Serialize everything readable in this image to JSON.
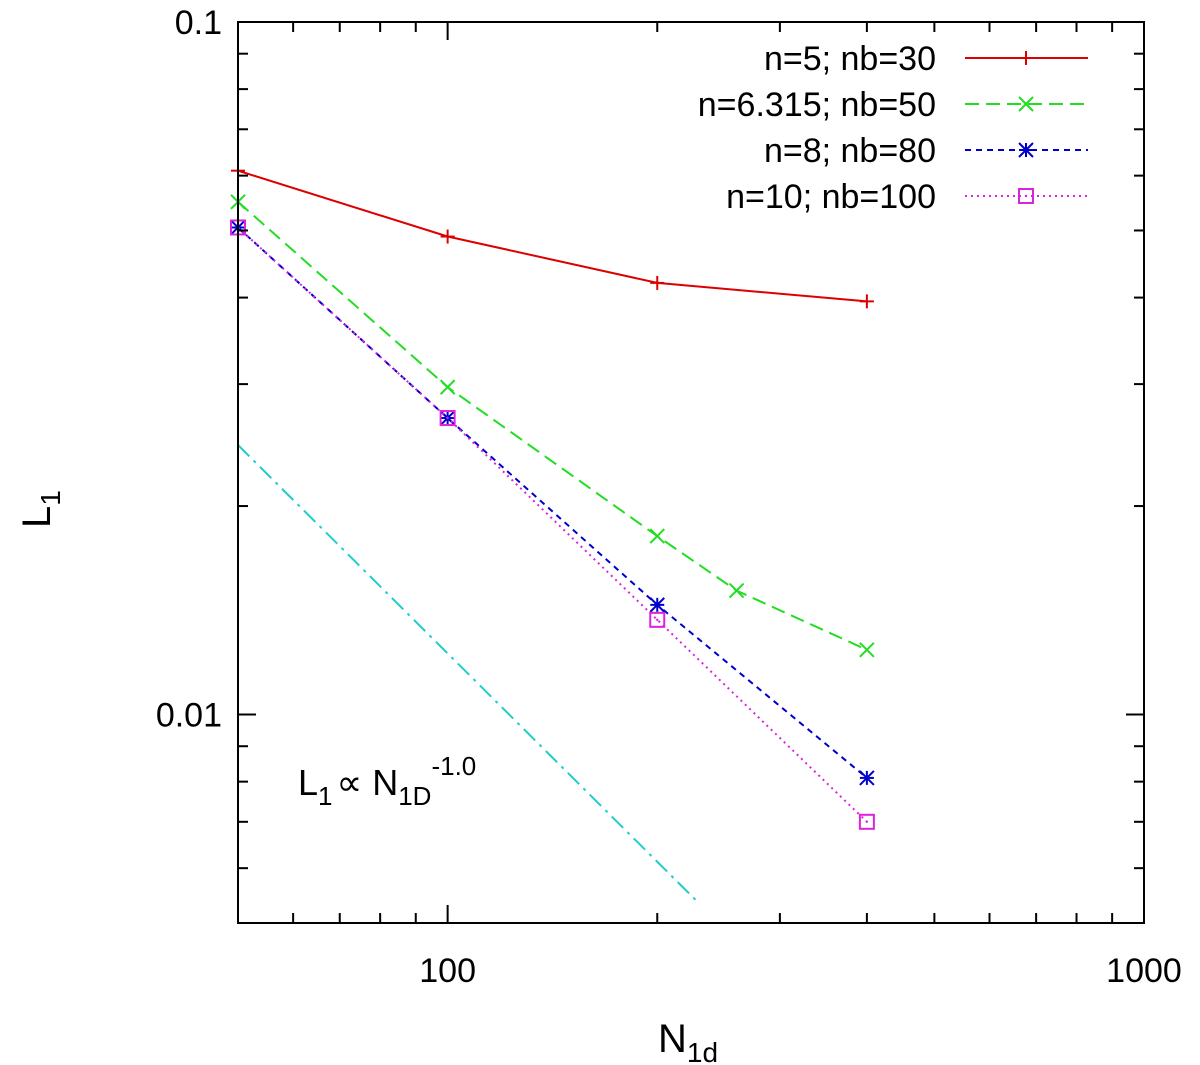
{
  "chart_data": {
    "type": "line",
    "xscale": "log",
    "yscale": "log",
    "xlim": [
      50,
      1000
    ],
    "ylim": [
      0.005,
      0.1
    ],
    "xlabel": "N",
    "xlabel_sub": "1d",
    "ylabel": "L",
    "ylabel_sub": "1",
    "xticks": [
      {
        "value": 100,
        "label": "100"
      },
      {
        "value": 1000,
        "label": "1000"
      }
    ],
    "yticks": [
      {
        "value": 0.01,
        "label": "0.01"
      },
      {
        "value": 0.1,
        "label": "0.1"
      }
    ],
    "series": [
      {
        "name": "n=5; nb=30",
        "color": "#dd0000",
        "dash": "",
        "marker": "plus",
        "x": [
          50,
          100,
          200,
          400
        ],
        "y": [
          0.061,
          0.049,
          0.042,
          0.0395
        ]
      },
      {
        "name": "n=6.315; nb=50",
        "color": "#22dd22",
        "dash": "14,7",
        "marker": "cross",
        "x": [
          50,
          100,
          200,
          260,
          400
        ],
        "y": [
          0.055,
          0.0297,
          0.0181,
          0.0151,
          0.0124
        ]
      },
      {
        "name": "n=8; nb=80",
        "color": "#0000cc",
        "dash": "6,5",
        "marker": "star",
        "x": [
          50,
          100,
          200,
          400
        ],
        "y": [
          0.0505,
          0.0268,
          0.0144,
          0.0081
        ]
      },
      {
        "name": "n=10; nb=100",
        "color": "#dd22dd",
        "dash": "2,4",
        "marker": "square",
        "x": [
          50,
          100,
          200,
          400
        ],
        "y": [
          0.0505,
          0.0268,
          0.0137,
          0.007
        ]
      }
    ],
    "reference_line": {
      "name": "L1 ∝ N1D^-1.0",
      "color": "#22cccc",
      "dash": "16,6,3,6",
      "x": [
        50,
        230
      ],
      "y": [
        0.0245,
        0.00533
      ]
    },
    "annotation": {
      "base": "L",
      "sub1": "1",
      "symbol": "∝ N",
      "sub2": "1D",
      "sup": "-1.0"
    },
    "legend_position": "top-right",
    "grid": false
  }
}
